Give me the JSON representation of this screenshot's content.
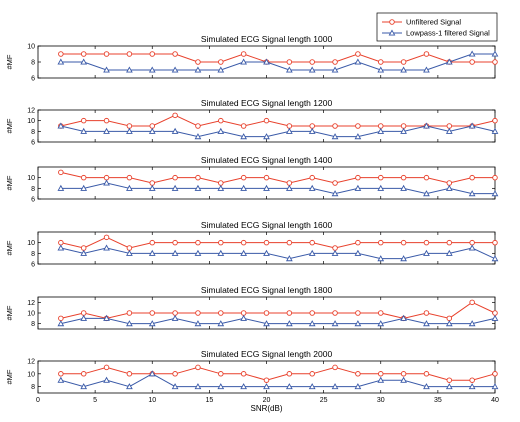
{
  "legend": {
    "placement": "top-right",
    "entries": [
      "Unfiltered Signal",
      "Lowpass-1 filtered Signal"
    ]
  },
  "colors": {
    "unfiltered": "#e8412c",
    "filtered": "#3a5aa8"
  },
  "xlabel": "SNR(dB)",
  "chart_data": [
    {
      "type": "line",
      "title": "Simulated ECG Signal length 1000",
      "xlabel": "",
      "ylabel": "#MF",
      "x": [
        2,
        4,
        6,
        8,
        10,
        12,
        14,
        16,
        18,
        20,
        22,
        24,
        26,
        28,
        30,
        32,
        34,
        36,
        38,
        40
      ],
      "xlim": [
        0,
        40
      ],
      "ylim": [
        6,
        10
      ],
      "yticks": [
        6,
        8,
        10
      ],
      "xticks": [],
      "series": [
        {
          "name": "Unfiltered Signal",
          "marker": "circle",
          "values": [
            9,
            9,
            9,
            9,
            9,
            9,
            8,
            8,
            9,
            8,
            8,
            8,
            8,
            9,
            8,
            8,
            9,
            8,
            8,
            8
          ]
        },
        {
          "name": "Lowpass-1 filtered Signal",
          "marker": "triangle",
          "values": [
            8,
            8,
            7,
            7,
            7,
            7,
            7,
            7,
            8,
            8,
            7,
            7,
            7,
            8,
            7,
            7,
            7,
            8,
            9,
            9
          ]
        }
      ]
    },
    {
      "type": "line",
      "title": "Simulated ECG Signal length 1200",
      "xlabel": "",
      "ylabel": "#MF",
      "x": [
        2,
        4,
        6,
        8,
        10,
        12,
        14,
        16,
        18,
        20,
        22,
        24,
        26,
        28,
        30,
        32,
        34,
        36,
        38,
        40
      ],
      "xlim": [
        0,
        40
      ],
      "ylim": [
        6,
        12
      ],
      "yticks": [
        6,
        8,
        10,
        12
      ],
      "xticks": [],
      "series": [
        {
          "name": "Unfiltered Signal",
          "marker": "circle",
          "values": [
            9,
            10,
            10,
            9,
            9,
            11,
            9,
            10,
            9,
            10,
            9,
            9,
            9,
            9,
            9,
            9,
            9,
            9,
            9,
            10
          ]
        },
        {
          "name": "Lowpass-1 filtered Signal",
          "marker": "triangle",
          "values": [
            9,
            8,
            8,
            8,
            8,
            8,
            7,
            8,
            7,
            7,
            8,
            8,
            7,
            7,
            8,
            8,
            9,
            8,
            9,
            8
          ]
        }
      ]
    },
    {
      "type": "line",
      "title": "Simulated ECG Signal length 1400",
      "xlabel": "",
      "ylabel": "#MF",
      "x": [
        2,
        4,
        6,
        8,
        10,
        12,
        14,
        16,
        18,
        20,
        22,
        24,
        26,
        28,
        30,
        32,
        34,
        36,
        38,
        40
      ],
      "xlim": [
        0,
        40
      ],
      "ylim": [
        6,
        12
      ],
      "yticks": [
        6,
        8,
        10
      ],
      "xticks": [],
      "series": [
        {
          "name": "Unfiltered Signal",
          "marker": "circle",
          "values": [
            11,
            10,
            10,
            10,
            9,
            10,
            10,
            9,
            10,
            10,
            9,
            10,
            9,
            10,
            10,
            10,
            10,
            9,
            10,
            10
          ]
        },
        {
          "name": "Lowpass-1 filtered Signal",
          "marker": "triangle",
          "values": [
            8,
            8,
            9,
            8,
            8,
            8,
            8,
            8,
            8,
            8,
            8,
            8,
            7,
            8,
            8,
            8,
            7,
            8,
            7,
            7
          ]
        }
      ]
    },
    {
      "type": "line",
      "title": "Simulated ECG Signal length 1600",
      "xlabel": "",
      "ylabel": "#MF",
      "x": [
        2,
        4,
        6,
        8,
        10,
        12,
        14,
        16,
        18,
        20,
        22,
        24,
        26,
        28,
        30,
        32,
        34,
        36,
        38,
        40
      ],
      "xlim": [
        0,
        40
      ],
      "ylim": [
        6,
        12
      ],
      "yticks": [
        6,
        8,
        10
      ],
      "xticks": [],
      "series": [
        {
          "name": "Unfiltered Signal",
          "marker": "circle",
          "values": [
            10,
            9,
            11,
            9,
            10,
            10,
            10,
            10,
            10,
            10,
            10,
            10,
            9,
            10,
            10,
            10,
            10,
            10,
            10,
            10
          ]
        },
        {
          "name": "Lowpass-1 filtered Signal",
          "marker": "triangle",
          "values": [
            9,
            8,
            9,
            8,
            8,
            8,
            8,
            8,
            8,
            8,
            7,
            8,
            8,
            8,
            7,
            7,
            8,
            8,
            9,
            7
          ]
        }
      ]
    },
    {
      "type": "line",
      "title": "Simulated ECG Signal length 1800",
      "xlabel": "",
      "ylabel": "#MF",
      "x": [
        2,
        4,
        6,
        8,
        10,
        12,
        14,
        16,
        18,
        20,
        22,
        24,
        26,
        28,
        30,
        32,
        34,
        36,
        38,
        40
      ],
      "xlim": [
        0,
        40
      ],
      "ylim": [
        7,
        13
      ],
      "yticks": [
        8,
        10,
        12
      ],
      "xticks": [],
      "series": [
        {
          "name": "Unfiltered Signal",
          "marker": "circle",
          "values": [
            9,
            10,
            9,
            10,
            10,
            10,
            10,
            10,
            10,
            10,
            10,
            10,
            10,
            10,
            10,
            9,
            10,
            9,
            12,
            10
          ]
        },
        {
          "name": "Lowpass-1 filtered Signal",
          "marker": "triangle",
          "values": [
            8,
            9,
            9,
            8,
            8,
            9,
            8,
            8,
            9,
            8,
            8,
            8,
            8,
            8,
            8,
            9,
            8,
            8,
            8,
            9
          ]
        }
      ]
    },
    {
      "type": "line",
      "title": "Simulated ECG Signal length 2000",
      "xlabel": "SNR(dB)",
      "ylabel": "#MF",
      "x": [
        2,
        4,
        6,
        8,
        10,
        12,
        14,
        16,
        18,
        20,
        22,
        24,
        26,
        28,
        30,
        32,
        34,
        36,
        38,
        40
      ],
      "xlim": [
        0,
        40
      ],
      "ylim": [
        7,
        12
      ],
      "yticks": [
        8,
        10,
        12
      ],
      "xticks": [
        0,
        5,
        10,
        15,
        20,
        25,
        30,
        35,
        40
      ],
      "series": [
        {
          "name": "Unfiltered Signal",
          "marker": "circle",
          "values": [
            10,
            10,
            11,
            10,
            10,
            10,
            11,
            10,
            10,
            9,
            10,
            10,
            11,
            10,
            10,
            10,
            10,
            9,
            9,
            10
          ]
        },
        {
          "name": "Lowpass-1 filtered Signal",
          "marker": "triangle",
          "values": [
            9,
            8,
            9,
            8,
            10,
            8,
            8,
            8,
            8,
            8,
            8,
            8,
            8,
            8,
            9,
            9,
            8,
            8,
            8,
            8
          ]
        }
      ]
    }
  ]
}
